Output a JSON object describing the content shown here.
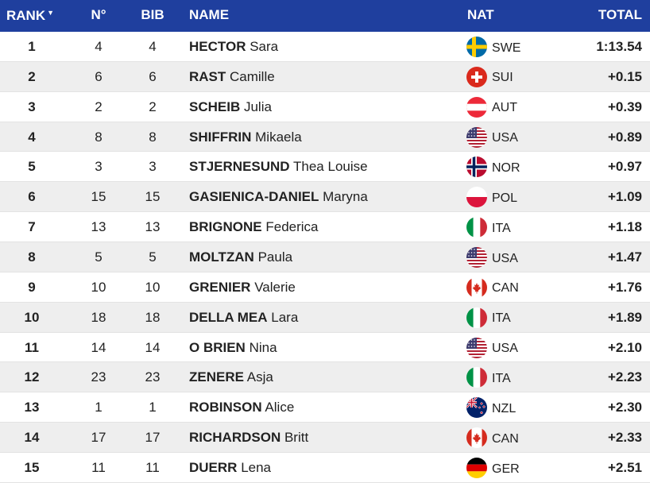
{
  "headers": {
    "rank": "RANK",
    "no": "N°",
    "bib": "BIB",
    "name": "NAME",
    "nat": "NAT",
    "total": "TOTAL"
  },
  "rows": [
    {
      "rank": "1",
      "no": "4",
      "bib": "4",
      "last": "HECTOR",
      "first": "Sara",
      "flag": "swe-flag-icon",
      "nat": "SWE",
      "total": "1:13.54"
    },
    {
      "rank": "2",
      "no": "6",
      "bib": "6",
      "last": "RAST",
      "first": "Camille",
      "flag": "sui-flag-icon",
      "nat": "SUI",
      "total": "+0.15"
    },
    {
      "rank": "3",
      "no": "2",
      "bib": "2",
      "last": "SCHEIB",
      "first": "Julia",
      "flag": "aut-flag-icon",
      "nat": "AUT",
      "total": "+0.39"
    },
    {
      "rank": "4",
      "no": "8",
      "bib": "8",
      "last": "SHIFFRIN",
      "first": "Mikaela",
      "flag": "usa-flag-icon",
      "nat": "USA",
      "total": "+0.89"
    },
    {
      "rank": "5",
      "no": "3",
      "bib": "3",
      "last": "STJERNESUND",
      "first": "Thea Louise",
      "flag": "nor-flag-icon",
      "nat": "NOR",
      "total": "+0.97"
    },
    {
      "rank": "6",
      "no": "15",
      "bib": "15",
      "last": "GASIENICA-DANIEL",
      "first": "Maryna",
      "flag": "pol-flag-icon",
      "nat": "POL",
      "total": "+1.09"
    },
    {
      "rank": "7",
      "no": "13",
      "bib": "13",
      "last": "BRIGNONE",
      "first": "Federica",
      "flag": "ita-flag-icon",
      "nat": "ITA",
      "total": "+1.18"
    },
    {
      "rank": "8",
      "no": "5",
      "bib": "5",
      "last": "MOLTZAN",
      "first": "Paula",
      "flag": "usa-flag-icon",
      "nat": "USA",
      "total": "+1.47"
    },
    {
      "rank": "9",
      "no": "10",
      "bib": "10",
      "last": "GRENIER",
      "first": "Valerie",
      "flag": "can-flag-icon",
      "nat": "CAN",
      "total": "+1.76"
    },
    {
      "rank": "10",
      "no": "18",
      "bib": "18",
      "last": "DELLA MEA",
      "first": "Lara",
      "flag": "ita-flag-icon",
      "nat": "ITA",
      "total": "+1.89"
    },
    {
      "rank": "11",
      "no": "14",
      "bib": "14",
      "last": "O BRIEN",
      "first": "Nina",
      "flag": "usa-flag-icon",
      "nat": "USA",
      "total": "+2.10"
    },
    {
      "rank": "12",
      "no": "23",
      "bib": "23",
      "last": "ZENERE",
      "first": "Asja",
      "flag": "ita-flag-icon",
      "nat": "ITA",
      "total": "+2.23"
    },
    {
      "rank": "13",
      "no": "1",
      "bib": "1",
      "last": "ROBINSON",
      "first": "Alice",
      "flag": "nzl-flag-icon",
      "nat": "NZL",
      "total": "+2.30"
    },
    {
      "rank": "14",
      "no": "17",
      "bib": "17",
      "last": "RICHARDSON",
      "first": "Britt",
      "flag": "can-flag-icon",
      "nat": "CAN",
      "total": "+2.33"
    },
    {
      "rank": "15",
      "no": "11",
      "bib": "11",
      "last": "DUERR",
      "first": "Lena",
      "flag": "ger-flag-icon",
      "nat": "GER",
      "total": "+2.51"
    }
  ]
}
